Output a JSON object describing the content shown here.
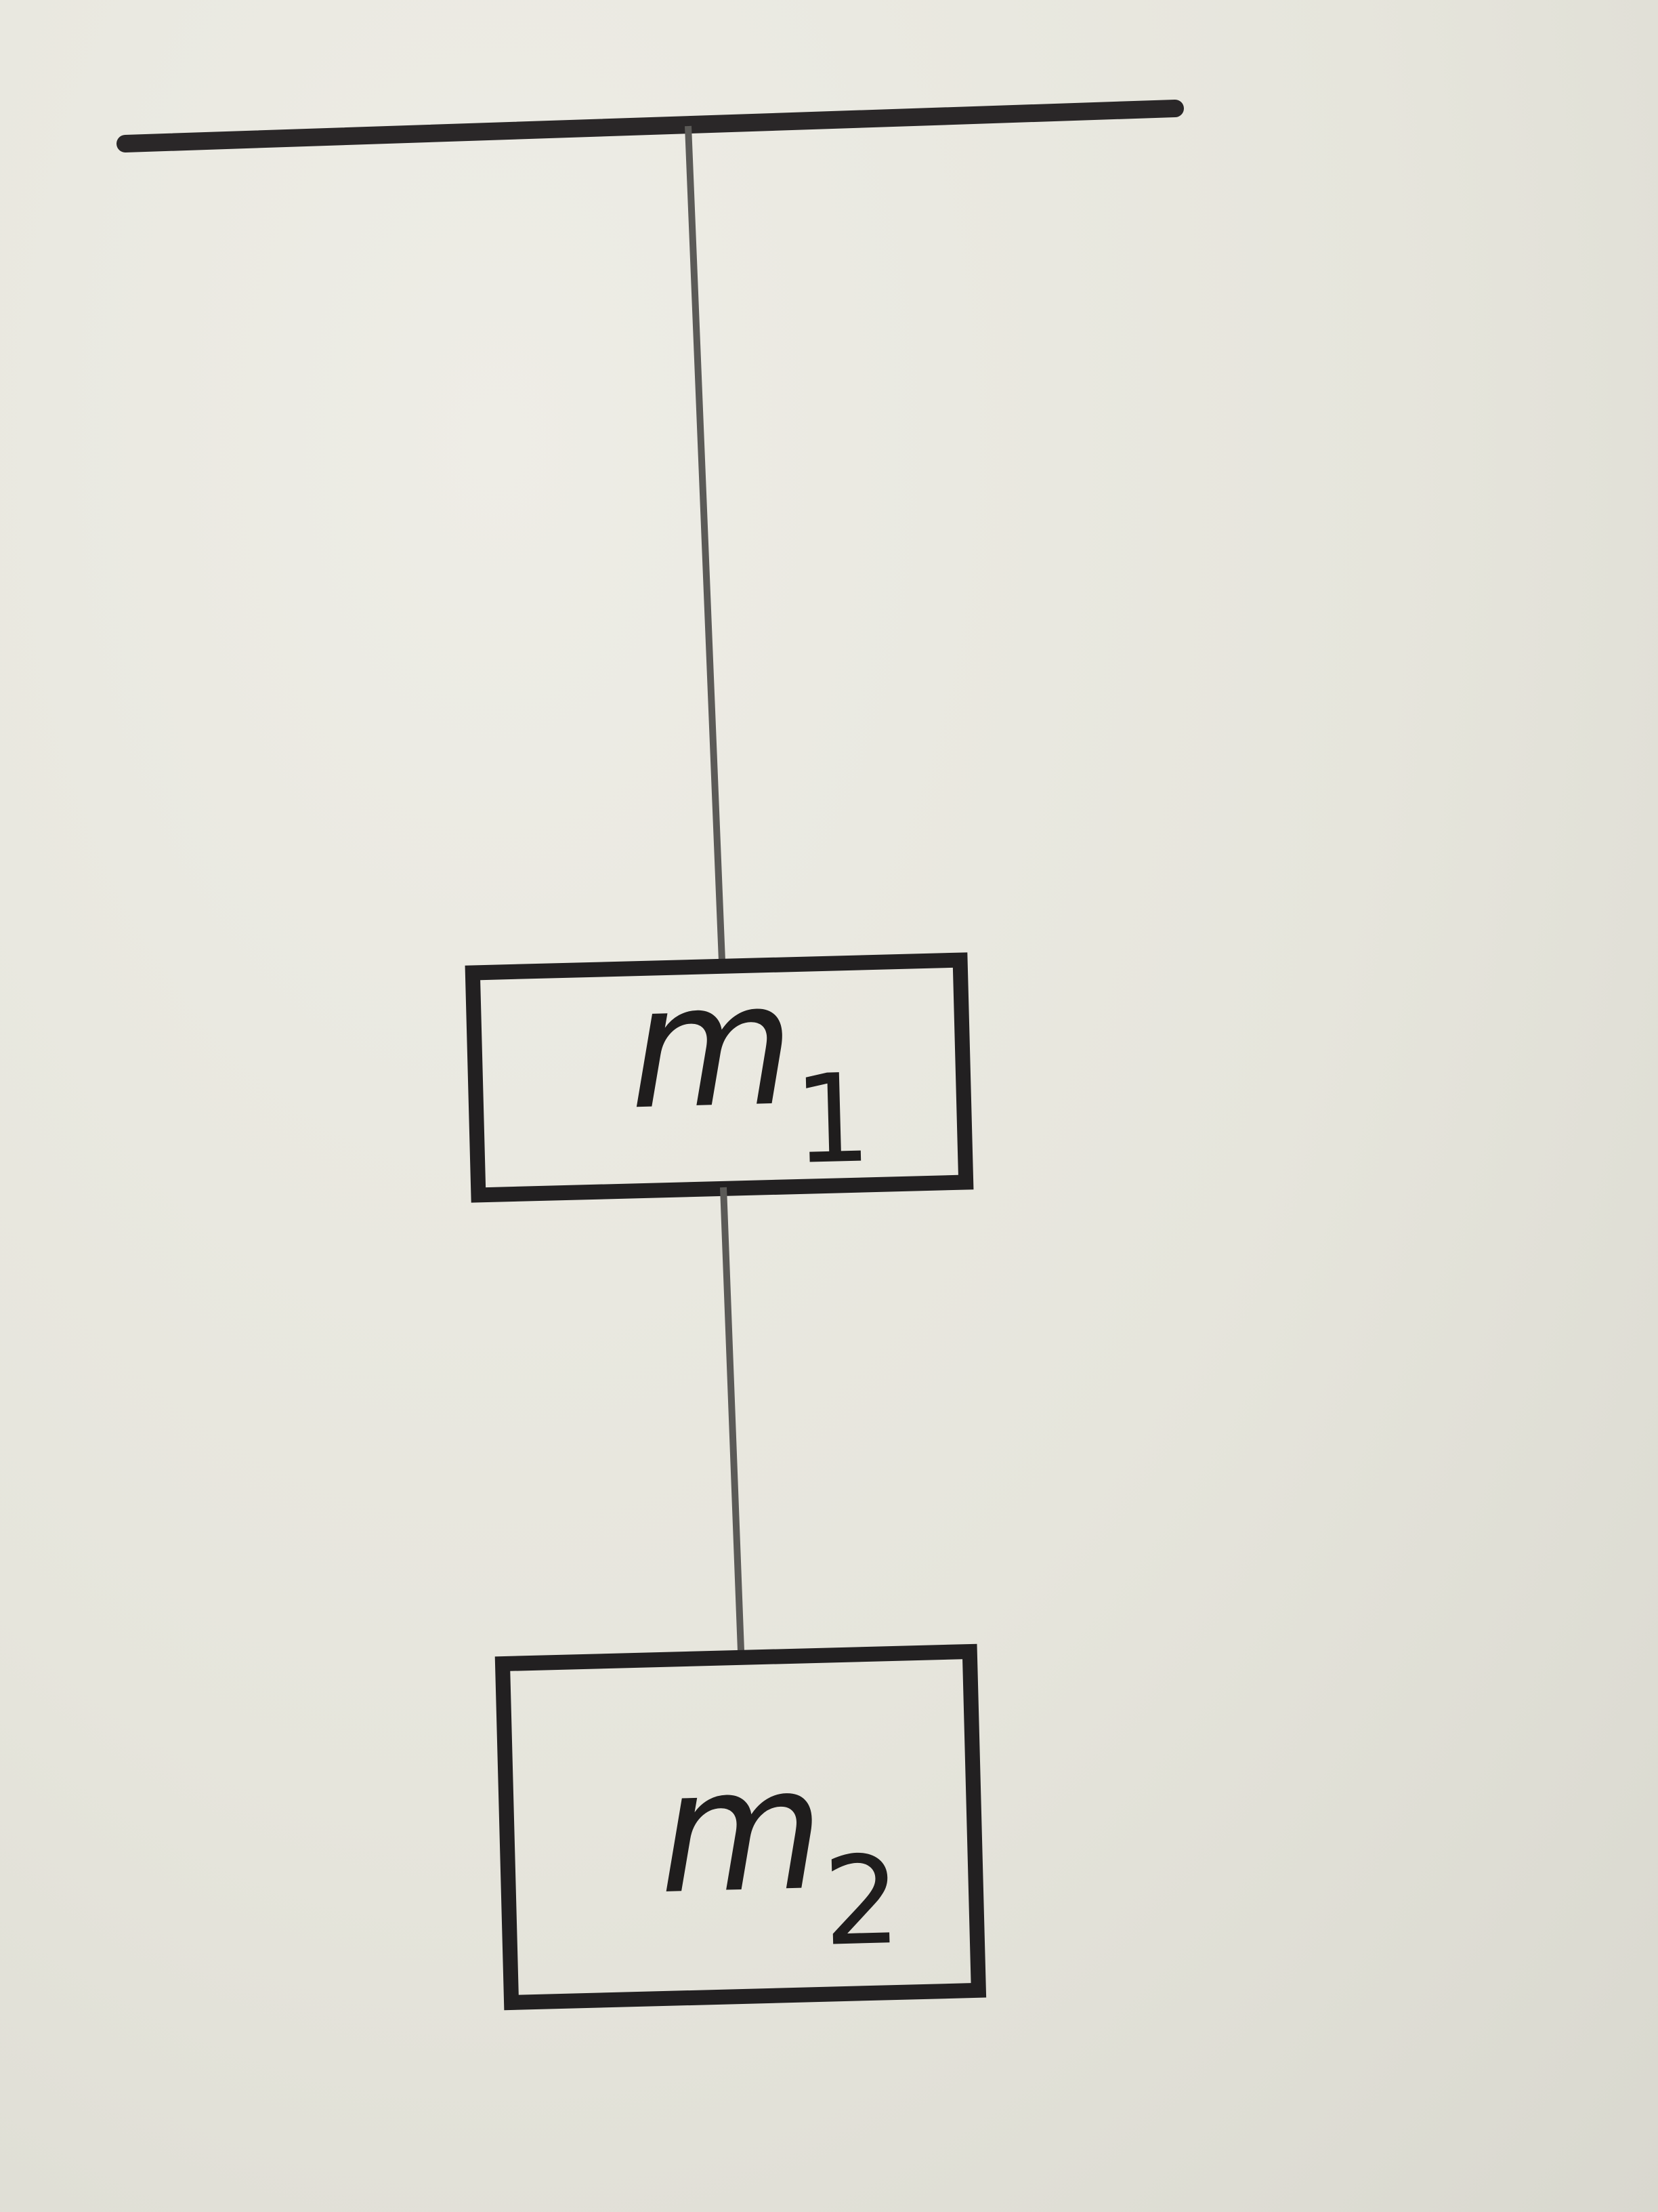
{
  "masses": [
    {
      "symbol": "m",
      "subscript": "1"
    },
    {
      "symbol": "m",
      "subscript": "2"
    }
  ],
  "colors": {
    "paper": "#e7e6de",
    "ink": "#2a2728",
    "string": "#5b5a57"
  }
}
